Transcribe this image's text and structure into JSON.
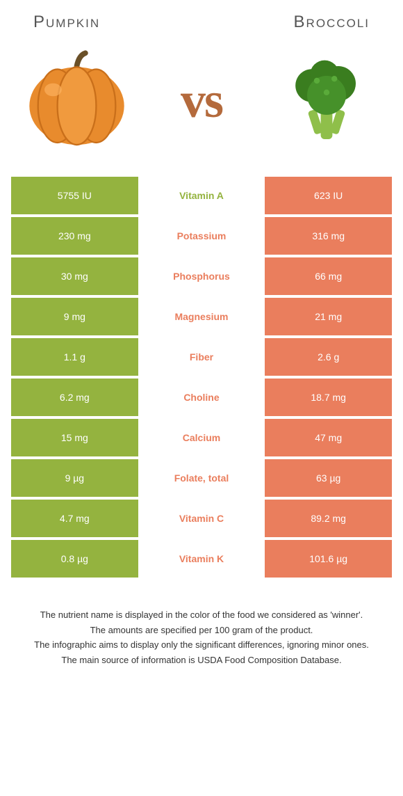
{
  "left_food": "Pumpkin",
  "right_food": "Broccoli",
  "vs": "vs",
  "colors": {
    "left_bg": "#94b33f",
    "right_bg": "#ea7e5d",
    "label_bg": "#ffffff",
    "left_text": "#94b33f",
    "right_text": "#ea7e5d",
    "vs_color": "#b46a3c"
  },
  "rows": [
    {
      "left": "5755 IU",
      "label": "Vitamin A",
      "right": "623 IU",
      "winner": "left"
    },
    {
      "left": "230 mg",
      "label": "Potassium",
      "right": "316 mg",
      "winner": "right"
    },
    {
      "left": "30 mg",
      "label": "Phosphorus",
      "right": "66 mg",
      "winner": "right"
    },
    {
      "left": "9 mg",
      "label": "Magnesium",
      "right": "21 mg",
      "winner": "right"
    },
    {
      "left": "1.1 g",
      "label": "Fiber",
      "right": "2.6 g",
      "winner": "right"
    },
    {
      "left": "6.2 mg",
      "label": "Choline",
      "right": "18.7 mg",
      "winner": "right"
    },
    {
      "left": "15 mg",
      "label": "Calcium",
      "right": "47 mg",
      "winner": "right"
    },
    {
      "left": "9 µg",
      "label": "Folate, total",
      "right": "63 µg",
      "winner": "right"
    },
    {
      "left": "4.7 mg",
      "label": "Vitamin C",
      "right": "89.2 mg",
      "winner": "right"
    },
    {
      "left": "0.8 µg",
      "label": "Vitamin K",
      "right": "101.6 µg",
      "winner": "right"
    }
  ],
  "footer": [
    "The nutrient name is displayed in the color of the food we considered as 'winner'.",
    "The amounts are specified per 100 gram of the product.",
    "The infographic aims to display only the significant differences, ignoring minor ones.",
    "The main source of information is USDA Food Composition Database."
  ]
}
